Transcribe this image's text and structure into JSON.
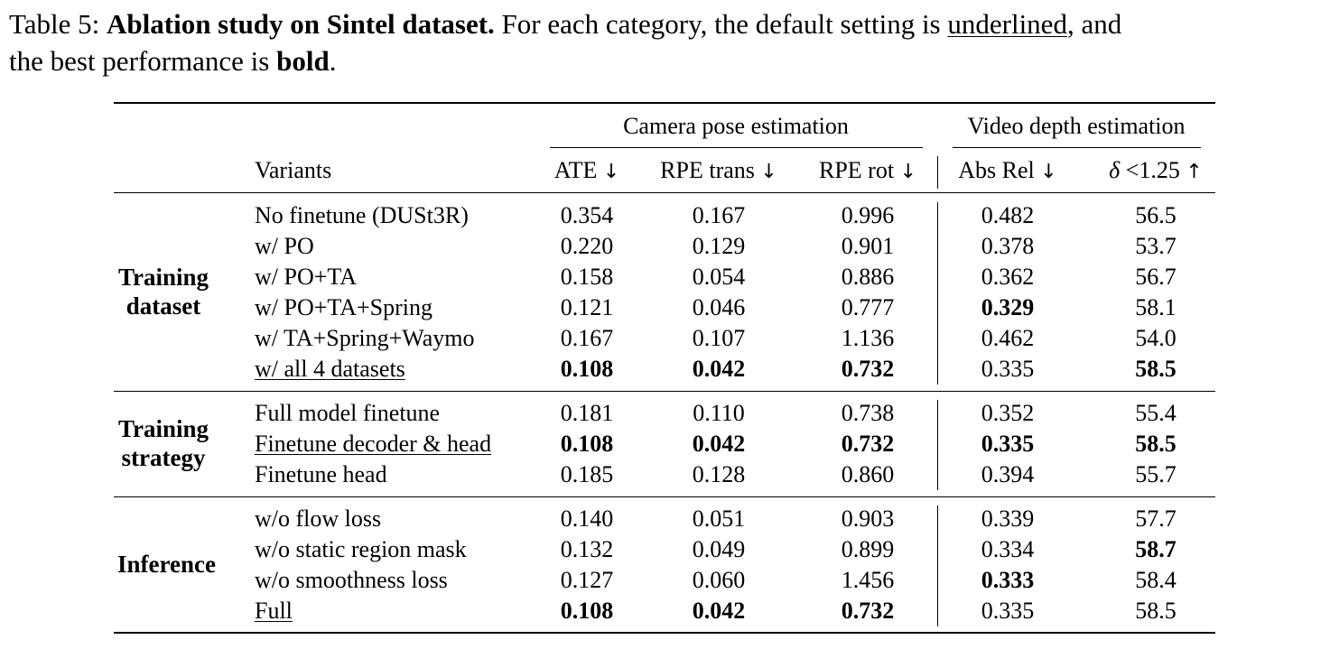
{
  "caption": {
    "prefix": "Table 5: ",
    "title": "Ablation study on Sintel dataset.",
    "text1": " For each category, the default setting is ",
    "underlined_word": "underlined",
    "text2": ", and",
    "line2_text": "the best performance is ",
    "bold_word": "bold",
    "line2_end": "."
  },
  "header": {
    "group_camera": "Camera pose estimation",
    "group_depth": "Video depth estimation",
    "variants": "Variants",
    "ate": "ATE",
    "rpe_trans": "RPE trans",
    "rpe_rot": "RPE rot",
    "abs_rel": "Abs Rel",
    "delta_sym": "δ",
    "delta_rest": " <1.25",
    "down_arrow": "↓",
    "up_arrow": "↑"
  },
  "sections": [
    {
      "category": "Training\ndataset",
      "rows": [
        {
          "variant": "No finetune (DUSt3R)",
          "ate": "0.354",
          "rpe_trans": "0.167",
          "rpe_rot": "0.996",
          "abs_rel": "0.482",
          "delta": "56.5"
        },
        {
          "variant": "w/ PO",
          "ate": "0.220",
          "rpe_trans": "0.129",
          "rpe_rot": "0.901",
          "abs_rel": "0.378",
          "delta": "53.7"
        },
        {
          "variant": "w/ PO+TA",
          "ate": "0.158",
          "rpe_trans": "0.054",
          "rpe_rot": "0.886",
          "abs_rel": "0.362",
          "delta": "56.7"
        },
        {
          "variant": "w/ PO+TA+Spring",
          "ate": "0.121",
          "rpe_trans": "0.046",
          "rpe_rot": "0.777",
          "abs_rel": "0.329",
          "delta": "58.1"
        },
        {
          "variant": "w/ TA+Spring+Waymo",
          "ate": "0.167",
          "rpe_trans": "0.107",
          "rpe_rot": "1.136",
          "abs_rel": "0.462",
          "delta": "54.0"
        },
        {
          "variant": "w/ all 4 datasets",
          "ate": "0.108",
          "rpe_trans": "0.042",
          "rpe_rot": "0.732",
          "abs_rel": "0.335",
          "delta": "58.5"
        }
      ]
    },
    {
      "category": "Training\nstrategy",
      "rows": [
        {
          "variant": "Full model finetune",
          "ate": "0.181",
          "rpe_trans": "0.110",
          "rpe_rot": "0.738",
          "abs_rel": "0.352",
          "delta": "55.4"
        },
        {
          "variant": "Finetune decoder & head",
          "ate": "0.108",
          "rpe_trans": "0.042",
          "rpe_rot": "0.732",
          "abs_rel": "0.335",
          "delta": "58.5"
        },
        {
          "variant": "Finetune head",
          "ate": "0.185",
          "rpe_trans": "0.128",
          "rpe_rot": "0.860",
          "abs_rel": "0.394",
          "delta": "55.7"
        }
      ]
    },
    {
      "category": "Inference",
      "rows": [
        {
          "variant": "w/o flow loss",
          "ate": "0.140",
          "rpe_trans": "0.051",
          "rpe_rot": "0.903",
          "abs_rel": "0.339",
          "delta": "57.7"
        },
        {
          "variant": "w/o static region mask",
          "ate": "0.132",
          "rpe_trans": "0.049",
          "rpe_rot": "0.899",
          "abs_rel": "0.334",
          "delta": "58.7"
        },
        {
          "variant": "w/o smoothness loss",
          "ate": "0.127",
          "rpe_trans": "0.060",
          "rpe_rot": "1.456",
          "abs_rel": "0.333",
          "delta": "58.4"
        },
        {
          "variant": "Full",
          "ate": "0.108",
          "rpe_trans": "0.042",
          "rpe_rot": "0.732",
          "abs_rel": "0.335",
          "delta": "58.5"
        }
      ]
    }
  ]
}
